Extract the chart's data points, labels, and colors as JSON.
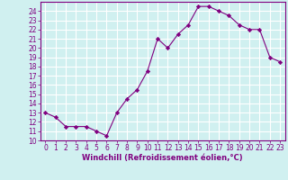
{
  "x": [
    0,
    1,
    2,
    3,
    4,
    5,
    6,
    7,
    8,
    9,
    10,
    11,
    12,
    13,
    14,
    15,
    16,
    17,
    18,
    19,
    20,
    21,
    22,
    23
  ],
  "y": [
    13.0,
    12.5,
    11.5,
    11.5,
    11.5,
    11.0,
    10.5,
    13.0,
    14.5,
    15.5,
    17.5,
    21.0,
    20.0,
    21.5,
    22.5,
    24.5,
    24.5,
    24.0,
    23.5,
    22.5,
    22.0,
    22.0,
    19.0,
    18.5
  ],
  "xlim": [
    -0.5,
    23.5
  ],
  "ylim": [
    10,
    25
  ],
  "yticks": [
    10,
    11,
    12,
    13,
    14,
    15,
    16,
    17,
    18,
    19,
    20,
    21,
    22,
    23,
    24
  ],
  "xticks": [
    0,
    1,
    2,
    3,
    4,
    5,
    6,
    7,
    8,
    9,
    10,
    11,
    12,
    13,
    14,
    15,
    16,
    17,
    18,
    19,
    20,
    21,
    22,
    23
  ],
  "xlabel": "Windchill (Refroidissement éolien,°C)",
  "line_color": "#800080",
  "marker": "D",
  "marker_size": 2.2,
  "bg_color": "#d0f0f0",
  "grid_color": "#ffffff",
  "tick_fontsize": 5.5,
  "xlabel_fontsize": 6.0
}
